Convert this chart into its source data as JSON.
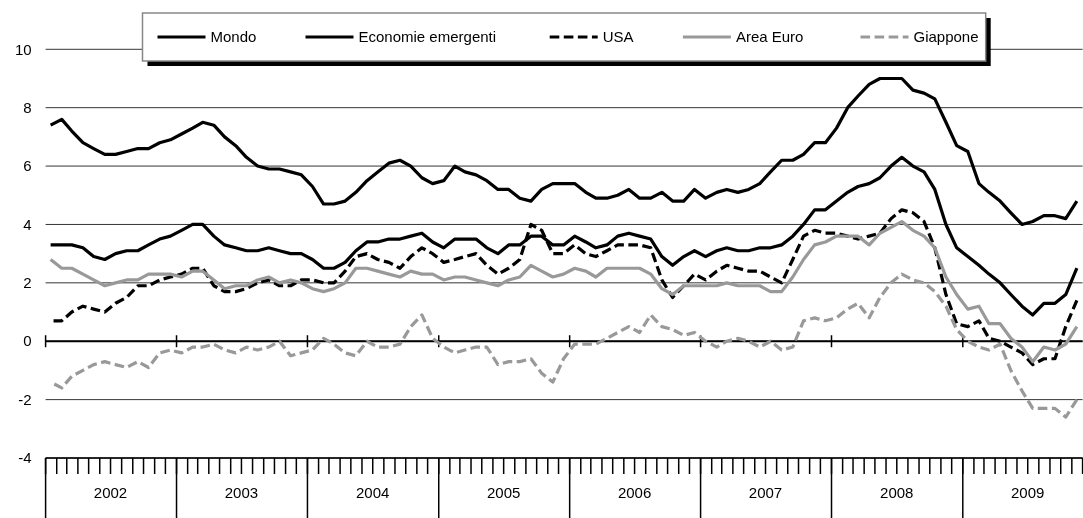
{
  "chart_data": {
    "type": "line",
    "x": [
      "2002-01-15",
      "2002-02-15",
      "2002-03-15",
      "2002-04-15",
      "2002-05-15",
      "2002-06-15",
      "2002-07-15",
      "2002-08-15",
      "2002-09-15",
      "2002-10-15",
      "2002-11-15",
      "2002-12-15",
      "2003-01-15",
      "2003-02-15",
      "2003-03-15",
      "2003-04-15",
      "2003-05-15",
      "2003-06-15",
      "2003-07-15",
      "2003-08-15",
      "2003-09-15",
      "2003-10-15",
      "2003-11-15",
      "2003-12-15",
      "2004-01-15",
      "2004-02-15",
      "2004-03-15",
      "2004-04-15",
      "2004-05-15",
      "2004-06-15",
      "2004-07-15",
      "2004-08-15",
      "2004-09-15",
      "2004-10-15",
      "2004-11-15",
      "2004-12-15",
      "2005-01-15",
      "2005-02-15",
      "2005-03-15",
      "2005-04-15",
      "2005-05-15",
      "2005-06-15",
      "2005-07-15",
      "2005-08-15",
      "2005-09-15",
      "2005-10-15",
      "2005-11-15",
      "2005-12-15",
      "2006-01-15",
      "2006-02-15",
      "2006-03-15",
      "2006-04-15",
      "2006-05-15",
      "2006-06-15",
      "2006-07-15",
      "2006-08-15",
      "2006-09-15",
      "2006-10-15",
      "2006-11-15",
      "2006-12-15",
      "2007-01-15",
      "2007-02-15",
      "2007-03-15",
      "2007-04-15",
      "2007-05-15",
      "2007-06-15",
      "2007-07-15",
      "2007-08-15",
      "2007-09-15",
      "2007-10-15",
      "2007-11-15",
      "2007-12-15",
      "2008-01-15",
      "2008-02-15",
      "2008-03-15",
      "2008-04-15",
      "2008-05-15",
      "2008-06-15",
      "2008-07-15",
      "2008-08-15",
      "2008-09-15",
      "2008-10-15",
      "2008-11-15",
      "2008-12-15",
      "2009-01-15",
      "2009-02-15",
      "2009-03-15",
      "2009-04-15",
      "2009-05-15",
      "2009-06-15",
      "2009-07-15",
      "2009-08-15",
      "2009-09-15",
      "2009-10-15",
      "2009-11-15"
    ],
    "xlim": [
      "2002-01-01",
      "2009-12-01"
    ],
    "xticks": [
      {
        "value": "2002-07-01",
        "label": "2002"
      },
      {
        "value": "2003-07-01",
        "label": "2003"
      },
      {
        "value": "2004-07-01",
        "label": "2004"
      },
      {
        "value": "2005-07-01",
        "label": "2005"
      },
      {
        "value": "2006-07-01",
        "label": "2006"
      },
      {
        "value": "2007-07-01",
        "label": "2007"
      },
      {
        "value": "2008-07-01",
        "label": "2008"
      },
      {
        "value": "2009-07-01",
        "label": "2009"
      }
    ],
    "ylim": [
      -4,
      10
    ],
    "yticks": [
      -4,
      -2,
      0,
      2,
      4,
      6,
      8,
      10
    ],
    "grid": "y",
    "legend": "top",
    "series": [
      {
        "name": "Mondo",
        "color": "#000000",
        "line_style": "solid",
        "values": [
          3.3,
          3.3,
          3.3,
          3.2,
          2.9,
          2.8,
          3.0,
          3.1,
          3.1,
          3.3,
          3.5,
          3.6,
          3.8,
          4.0,
          4.0,
          3.6,
          3.3,
          3.2,
          3.1,
          3.1,
          3.2,
          3.1,
          3.0,
          3.0,
          2.8,
          2.5,
          2.5,
          2.7,
          3.1,
          3.4,
          3.4,
          3.5,
          3.5,
          3.6,
          3.7,
          3.4,
          3.2,
          3.5,
          3.5,
          3.5,
          3.2,
          3.0,
          3.3,
          3.3,
          3.6,
          3.6,
          3.3,
          3.3,
          3.6,
          3.4,
          3.2,
          3.3,
          3.6,
          3.7,
          3.6,
          3.5,
          2.9,
          2.6,
          2.9,
          3.1,
          2.9,
          3.1,
          3.2,
          3.1,
          3.1,
          3.2,
          3.2,
          3.3,
          3.6,
          4.0,
          4.5,
          4.5,
          4.8,
          5.1,
          5.3,
          5.4,
          5.6,
          6.0,
          6.3,
          6.0,
          5.8,
          5.2,
          4.0,
          3.2,
          2.9,
          2.6,
          2.3,
          2.0,
          1.6,
          1.2,
          0.9,
          1.3,
          1.3,
          1.6,
          2.5
        ]
      },
      {
        "name": "Economie emergenti",
        "color": "#000000",
        "line_style": "solid",
        "values": [
          7.4,
          7.6,
          7.2,
          6.8,
          6.6,
          6.4,
          6.4,
          6.5,
          6.6,
          6.6,
          6.8,
          6.9,
          7.1,
          7.3,
          7.5,
          7.4,
          7.0,
          6.7,
          6.3,
          6.0,
          5.9,
          5.9,
          5.8,
          5.7,
          5.3,
          4.7,
          4.7,
          4.8,
          5.1,
          5.5,
          5.8,
          6.1,
          6.2,
          6.0,
          5.6,
          5.4,
          5.5,
          6.0,
          5.8,
          5.7,
          5.5,
          5.2,
          5.2,
          4.9,
          4.8,
          5.2,
          5.4,
          5.4,
          5.4,
          5.1,
          4.9,
          4.9,
          5.0,
          5.2,
          4.9,
          4.9,
          5.1,
          4.8,
          4.8,
          5.2,
          4.9,
          5.1,
          5.2,
          5.1,
          5.2,
          5.4,
          5.8,
          6.2,
          6.2,
          6.4,
          6.8,
          6.8,
          7.3,
          8.0,
          8.4,
          8.8,
          9.0,
          9.0,
          9.0,
          8.6,
          8.5,
          8.3,
          7.5,
          6.7,
          6.5,
          5.4,
          5.1,
          4.8,
          4.4,
          4.0,
          4.1,
          4.3,
          4.3,
          4.2,
          4.8
        ]
      },
      {
        "name": "USA",
        "color": "#000000",
        "line_style": "dashed",
        "values": [
          0.7,
          0.7,
          1.0,
          1.2,
          1.1,
          1.0,
          1.3,
          1.5,
          1.9,
          1.9,
          2.1,
          2.2,
          2.3,
          2.5,
          2.5,
          1.9,
          1.7,
          1.7,
          1.8,
          2.0,
          2.1,
          1.9,
          1.9,
          2.1,
          2.1,
          2.0,
          2.0,
          2.4,
          2.9,
          3.0,
          2.8,
          2.7,
          2.5,
          2.9,
          3.2,
          3.0,
          2.7,
          2.8,
          2.9,
          3.0,
          2.6,
          2.3,
          2.5,
          2.8,
          4.0,
          3.8,
          3.0,
          3.0,
          3.3,
          3.0,
          2.9,
          3.1,
          3.3,
          3.3,
          3.3,
          3.2,
          2.1,
          1.5,
          1.9,
          2.3,
          2.1,
          2.4,
          2.6,
          2.5,
          2.4,
          2.4,
          2.2,
          2.0,
          2.8,
          3.6,
          3.8,
          3.7,
          3.7,
          3.6,
          3.5,
          3.6,
          3.7,
          4.2,
          4.5,
          4.4,
          4.1,
          3.2,
          1.6,
          0.6,
          0.5,
          0.7,
          0.1,
          0.0,
          -0.2,
          -0.4,
          -0.8,
          -0.6,
          -0.6,
          0.5,
          1.4
        ]
      },
      {
        "name": "Area Euro",
        "color": "#999999",
        "line_style": "solid",
        "values": [
          2.8,
          2.5,
          2.5,
          2.3,
          2.1,
          1.9,
          2.0,
          2.1,
          2.1,
          2.3,
          2.3,
          2.3,
          2.2,
          2.4,
          2.4,
          2.1,
          1.8,
          1.9,
          1.9,
          2.1,
          2.2,
          2.0,
          2.1,
          2.0,
          1.8,
          1.7,
          1.8,
          2.0,
          2.5,
          2.5,
          2.4,
          2.3,
          2.2,
          2.4,
          2.3,
          2.3,
          2.1,
          2.2,
          2.2,
          2.1,
          2.0,
          1.9,
          2.1,
          2.2,
          2.6,
          2.4,
          2.2,
          2.3,
          2.5,
          2.4,
          2.2,
          2.5,
          2.5,
          2.5,
          2.5,
          2.3,
          1.8,
          1.6,
          1.9,
          1.9,
          1.9,
          1.9,
          2.0,
          1.9,
          1.9,
          1.9,
          1.7,
          1.7,
          2.2,
          2.8,
          3.3,
          3.4,
          3.6,
          3.6,
          3.6,
          3.3,
          3.7,
          3.9,
          4.1,
          3.8,
          3.6,
          3.2,
          2.2,
          1.6,
          1.1,
          1.2,
          0.6,
          0.6,
          0.1,
          -0.2,
          -0.7,
          -0.2,
          -0.3,
          -0.1,
          0.5
        ]
      },
      {
        "name": "Giappone",
        "color": "#999999",
        "line_style": "dashed",
        "values": [
          -1.4,
          -1.6,
          -1.2,
          -1.0,
          -0.8,
          -0.7,
          -0.8,
          -0.9,
          -0.7,
          -0.9,
          -0.4,
          -0.3,
          -0.4,
          -0.2,
          -0.2,
          -0.1,
          -0.3,
          -0.4,
          -0.2,
          -0.3,
          -0.2,
          0.0,
          -0.5,
          -0.4,
          -0.3,
          0.1,
          -0.1,
          -0.4,
          -0.5,
          0.0,
          -0.2,
          -0.2,
          -0.1,
          0.5,
          0.9,
          0.1,
          -0.2,
          -0.4,
          -0.3,
          -0.2,
          -0.2,
          -0.8,
          -0.7,
          -0.7,
          -0.6,
          -1.1,
          -1.4,
          -0.6,
          -0.1,
          -0.1,
          -0.1,
          0.1,
          0.3,
          0.5,
          0.3,
          0.9,
          0.5,
          0.4,
          0.2,
          0.3,
          0.0,
          -0.2,
          0.0,
          0.1,
          0.0,
          -0.2,
          0.0,
          -0.3,
          -0.2,
          0.7,
          0.8,
          0.7,
          0.8,
          1.1,
          1.3,
          0.8,
          1.5,
          2.0,
          2.3,
          2.1,
          2.0,
          1.7,
          1.2,
          0.4,
          0.0,
          -0.2,
          -0.3,
          -0.1,
          -1.0,
          -1.7,
          -2.3,
          -2.3,
          -2.3,
          -2.6,
          -2.0
        ]
      }
    ]
  }
}
